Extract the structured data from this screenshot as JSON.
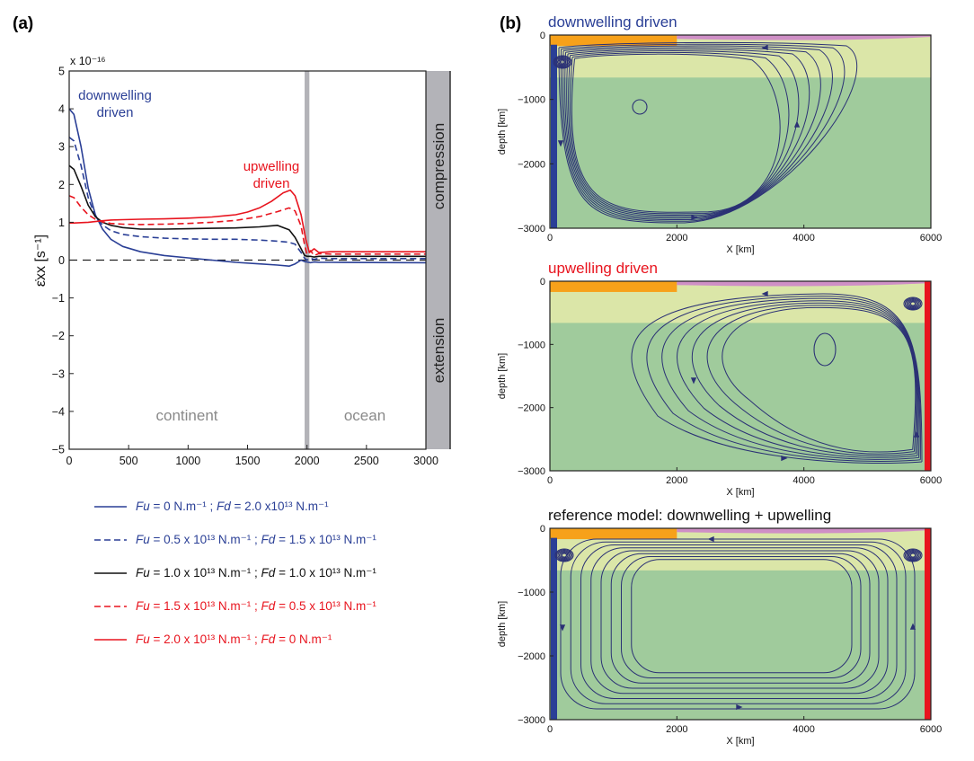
{
  "panel_a_label": "(a)",
  "panel_b_label": "(b)",
  "colors": {
    "blue": "#2a3f96",
    "black": "#111111",
    "red": "#e8141e",
    "gray": "#b3b3b8",
    "light_green": "#dbe6a8",
    "green": "#a0cb9c",
    "orange": "#f7a11a",
    "pink": "#cf8fc6",
    "stream": "#2b3175"
  },
  "chart_data": [
    {
      "id": "a",
      "type": "line",
      "xlabel": "",
      "ylabel": "ε̇xx [s⁻¹]",
      "y_exponent_label": "x 10⁻¹⁶",
      "xlim": [
        0,
        3000
      ],
      "ylim": [
        -5,
        5
      ],
      "xticks": [
        0,
        500,
        1000,
        1500,
        2000,
        2500,
        3000
      ],
      "yticks": [
        -5,
        -4,
        -3,
        -2,
        -1,
        0,
        1,
        2,
        3,
        4,
        5
      ],
      "right_band_labels": [
        "compression",
        "extension"
      ],
      "region_labels": [
        "continent",
        "ocean"
      ],
      "annotations": [
        "downwelling driven",
        "upwelling driven"
      ],
      "series": [
        {
          "key": "s1",
          "color": "blue",
          "dash": false,
          "x": [
            0,
            40,
            100,
            160,
            220,
            280,
            350,
            450,
            600,
            800,
            1000,
            1200,
            1400,
            1600,
            1750,
            1850,
            1900,
            1950,
            1980,
            2000,
            2030,
            2060,
            2100,
            2200,
            3000
          ],
          "y": [
            4.0,
            3.85,
            3.0,
            1.9,
            1.2,
            0.82,
            0.55,
            0.36,
            0.22,
            0.12,
            0.06,
            0.0,
            -0.06,
            -0.1,
            -0.13,
            -0.16,
            -0.1,
            0.0,
            -0.04,
            -0.05,
            -0.07,
            -0.05,
            -0.06,
            -0.06,
            -0.07
          ]
        },
        {
          "key": "s2",
          "color": "blue",
          "dash": true,
          "x": [
            0,
            40,
            100,
            160,
            220,
            280,
            350,
            450,
            600,
            800,
            1000,
            1200,
            1400,
            1600,
            1750,
            1850,
            1900,
            1950,
            1980,
            2000,
            2030,
            2060,
            2100,
            2200,
            3000
          ],
          "y": [
            3.25,
            3.15,
            2.5,
            1.65,
            1.15,
            0.93,
            0.78,
            0.68,
            0.62,
            0.58,
            0.56,
            0.55,
            0.55,
            0.53,
            0.5,
            0.47,
            0.42,
            0.2,
            0.05,
            0.0,
            0.05,
            0.02,
            0.05,
            0.04,
            0.04
          ]
        },
        {
          "key": "s3",
          "color": "black",
          "dash": false,
          "x": [
            0,
            40,
            100,
            160,
            220,
            280,
            350,
            450,
            600,
            800,
            1000,
            1200,
            1400,
            1600,
            1750,
            1850,
            1900,
            1950,
            1980,
            2000,
            2030,
            2060,
            2100,
            2200,
            3000
          ],
          "y": [
            2.5,
            2.4,
            1.95,
            1.45,
            1.15,
            1.0,
            0.92,
            0.86,
            0.82,
            0.82,
            0.83,
            0.84,
            0.85,
            0.88,
            0.92,
            0.8,
            0.6,
            0.3,
            0.12,
            0.1,
            0.1,
            0.08,
            0.1,
            0.1,
            0.1
          ]
        },
        {
          "key": "s4",
          "color": "red",
          "dash": true,
          "x": [
            0,
            40,
            100,
            160,
            220,
            280,
            350,
            450,
            600,
            800,
            1000,
            1200,
            1400,
            1600,
            1750,
            1850,
            1900,
            1950,
            1980,
            2000,
            2030,
            2060,
            2100,
            2200,
            3000
          ],
          "y": [
            1.7,
            1.65,
            1.4,
            1.2,
            1.08,
            1.01,
            0.97,
            0.95,
            0.94,
            0.95,
            0.97,
            1.0,
            1.05,
            1.15,
            1.28,
            1.38,
            1.3,
            0.9,
            0.4,
            0.15,
            0.25,
            0.12,
            0.17,
            0.16,
            0.16
          ]
        },
        {
          "key": "s5",
          "color": "red",
          "dash": false,
          "x": [
            0,
            40,
            100,
            160,
            220,
            280,
            350,
            450,
            600,
            800,
            1000,
            1200,
            1400,
            1500,
            1600,
            1700,
            1800,
            1860,
            1900,
            1950,
            1990,
            2020,
            2060,
            2100,
            2200,
            3000
          ],
          "y": [
            0.98,
            0.98,
            0.99,
            1.0,
            1.02,
            1.04,
            1.06,
            1.07,
            1.08,
            1.09,
            1.11,
            1.14,
            1.2,
            1.27,
            1.38,
            1.55,
            1.78,
            1.85,
            1.7,
            1.2,
            0.55,
            0.2,
            0.3,
            0.2,
            0.22,
            0.22
          ]
        }
      ],
      "legend": [
        {
          "key": "s1",
          "color": "blue",
          "dash": false,
          "fu_val": " =  0 N.m⁻¹ ; ",
          "fd_val": " = 2.0 x10¹³ N.m⁻¹"
        },
        {
          "key": "s2",
          "color": "blue",
          "dash": true,
          "fu_val": " =  0.5 x 10¹³ N.m⁻¹ ; ",
          "fd_val": " = 1.5 x 10¹³ N.m⁻¹"
        },
        {
          "key": "s3",
          "color": "black",
          "dash": false,
          "fu_val": " =  1.0 x 10¹³ N.m⁻¹ ; ",
          "fd_val": " = 1.0 x 10¹³ N.m⁻¹"
        },
        {
          "key": "s4",
          "color": "red",
          "dash": true,
          "fu_val": " =  1.5 x 10¹³ N.m⁻¹ ; ",
          "fd_val": " = 0.5 x 10¹³ N.m⁻¹"
        },
        {
          "key": "s5",
          "color": "red",
          "dash": false,
          "fu_val": " =  2.0 x 10¹³ N.m⁻¹ ; ",
          "fd_val": " = 0 N.m⁻¹"
        }
      ],
      "legend_fu": "Fu",
      "legend_fd": "Fd"
    },
    {
      "id": "b1",
      "type": "streamline",
      "title": "downwelling driven",
      "title_color": "blue",
      "xlabel": "X [km]",
      "ylabel": "depth [km]",
      "xlim": [
        0,
        6000
      ],
      "ylim": [
        -3000,
        0
      ],
      "xticks": [
        0,
        2000,
        4000,
        6000
      ],
      "yticks": [
        0,
        -1000,
        -2000,
        -3000
      ],
      "side_bars": [
        "left-blue"
      ]
    },
    {
      "id": "b2",
      "type": "streamline",
      "title": "upwelling driven",
      "title_color": "red",
      "xlabel": "X [km]",
      "ylabel": "depth [km]",
      "xlim": [
        0,
        6000
      ],
      "ylim": [
        -3000,
        0
      ],
      "xticks": [
        0,
        2000,
        4000,
        6000
      ],
      "yticks": [
        0,
        -1000,
        -2000,
        -3000
      ],
      "side_bars": [
        "right-red"
      ]
    },
    {
      "id": "b3",
      "type": "streamline",
      "title": "reference model: downwelling + upwelling",
      "title_color": "black",
      "xlabel": "X [km]",
      "ylabel": "depth [km]",
      "xlim": [
        0,
        6000
      ],
      "ylim": [
        -3000,
        0
      ],
      "xticks": [
        0,
        2000,
        4000,
        6000
      ],
      "yticks": [
        0,
        -1000,
        -2000,
        -3000
      ],
      "side_bars": [
        "left-blue",
        "right-red"
      ]
    }
  ]
}
